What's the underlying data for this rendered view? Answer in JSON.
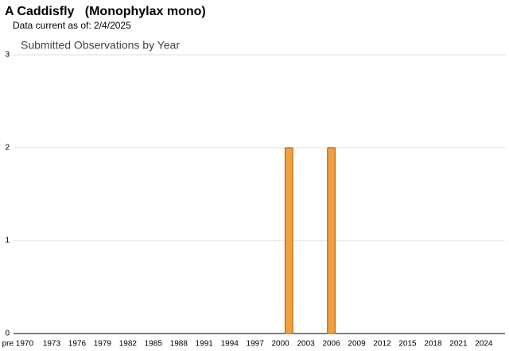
{
  "header": {
    "title": "A Caddisfly   (Monophylax mono)",
    "subtitle": "Data current as of: 2/4/2025"
  },
  "chart_data": {
    "type": "bar",
    "title": "Submitted Observations by Year",
    "categories": [
      "pre 1970",
      null,
      null,
      null,
      "1973",
      null,
      null,
      "1976",
      null,
      null,
      "1979",
      null,
      null,
      "1982",
      null,
      null,
      "1985",
      null,
      null,
      "1988",
      null,
      null,
      "1991",
      null,
      null,
      "1994",
      null,
      null,
      "1997",
      null,
      null,
      "2000",
      null,
      null,
      "2003",
      null,
      null,
      "2006",
      null,
      null,
      "2009",
      null,
      null,
      "2012",
      null,
      null,
      "2015",
      null,
      null,
      "2018",
      null,
      null,
      "2021",
      null,
      null,
      "2024",
      null,
      null
    ],
    "values": [
      0,
      0,
      0,
      0,
      0,
      0,
      0,
      0,
      0,
      0,
      0,
      0,
      0,
      0,
      0,
      0,
      0,
      0,
      0,
      0,
      0,
      0,
      0,
      0,
      0,
      0,
      0,
      0,
      0,
      0,
      0,
      0,
      2,
      0,
      0,
      0,
      0,
      2,
      0,
      0,
      0,
      0,
      0,
      0,
      0,
      0,
      0,
      0,
      0,
      0,
      0,
      0,
      0,
      0,
      0,
      0,
      0,
      0
    ],
    "color": "#f0a040",
    "ylim": [
      0,
      3
    ],
    "yticks": [
      0,
      1,
      2,
      3
    ],
    "grid": true
  }
}
